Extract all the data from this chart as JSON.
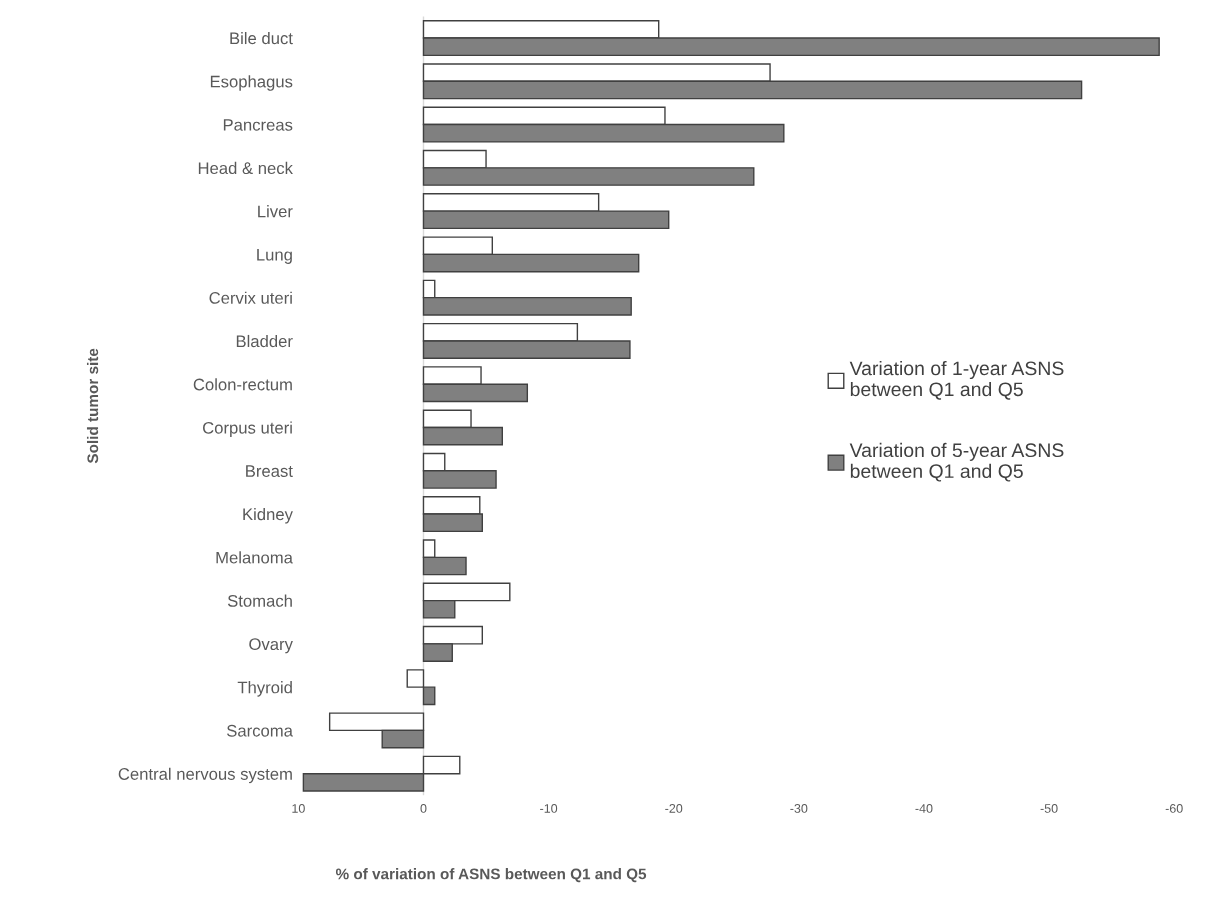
{
  "chart_data": {
    "type": "bar",
    "orientation": "horizontal",
    "xlabel": "% of variation of ASNS between Q1 and Q5",
    "ylabel": "Solid tumor site",
    "categories": [
      "Bile duct",
      "Esophagus",
      "Pancreas",
      "Head & neck",
      "Liver",
      "Lung",
      "Cervix uteri",
      "Bladder",
      "Colon-rectum",
      "Corpus uteri",
      "Breast",
      "Kidney",
      "Melanoma",
      "Stomach",
      "Ovary",
      "Thyroid",
      "Sarcoma",
      "Central nervous system"
    ],
    "series": [
      {
        "name": "Variation of 1-year ASNS between Q1 and Q5",
        "color": "#ffffff",
        "values": [
          -18.8,
          -27.7,
          -19.3,
          -5.0,
          -14.0,
          -5.5,
          -0.9,
          -12.3,
          -4.6,
          -3.8,
          -1.7,
          -4.5,
          -0.9,
          -6.9,
          -4.7,
          1.3,
          7.5,
          -2.9
        ]
      },
      {
        "name": "Variation of 5-year ASNS between Q1 and Q5",
        "color": "#808080",
        "values": [
          -58.8,
          -52.6,
          -28.8,
          -26.4,
          -19.6,
          -17.2,
          -16.6,
          -16.5,
          -8.3,
          -6.3,
          -5.8,
          -4.7,
          -3.4,
          -2.5,
          -2.3,
          -0.9,
          3.3,
          9.6
        ]
      }
    ],
    "xlim": [
      10,
      -60
    ],
    "xticks": [
      10,
      0,
      -10,
      -20,
      -30,
      -40,
      -50,
      -60
    ],
    "grid": false,
    "ref_lines": [
      {
        "axis": "x",
        "value": 0,
        "color": "#d9d9d9"
      }
    ],
    "legend": "right"
  }
}
